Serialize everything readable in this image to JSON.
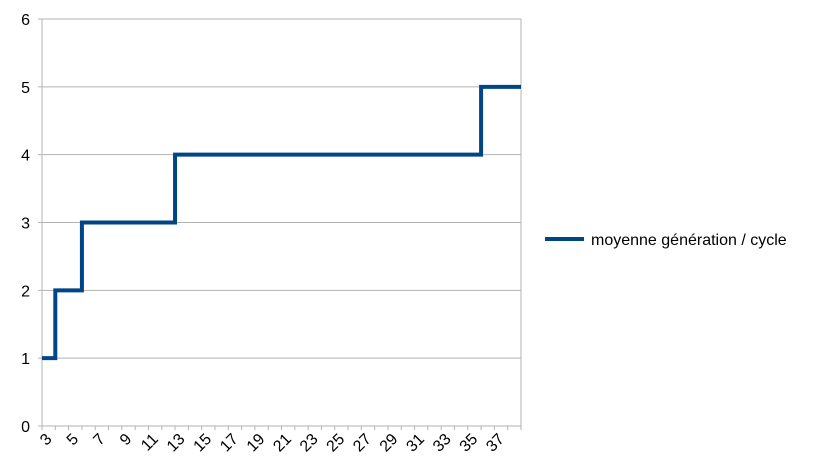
{
  "chart_data": {
    "type": "line",
    "step": true,
    "title": "",
    "xlabel": "",
    "ylabel": "",
    "x": [
      3,
      4,
      5,
      6,
      7,
      8,
      9,
      10,
      11,
      12,
      13,
      14,
      15,
      16,
      17,
      18,
      19,
      20,
      21,
      22,
      23,
      24,
      25,
      26,
      27,
      28,
      29,
      30,
      31,
      32,
      33,
      34,
      35,
      36,
      37,
      38
    ],
    "x_tick_labels": [
      "3",
      "5",
      "7",
      "9",
      "11",
      "13",
      "15",
      "17",
      "19",
      "21",
      "23",
      "25",
      "27",
      "29",
      "31",
      "33",
      "35",
      "37"
    ],
    "y_ticks": [
      0,
      1,
      2,
      3,
      4,
      5,
      6
    ],
    "ylim": [
      0,
      6
    ],
    "grid": "horizontal",
    "legend_position": "right",
    "series": [
      {
        "name": "moyenne génération / cycle",
        "color": "#004586",
        "values": [
          1,
          2,
          2,
          3,
          3,
          3,
          3,
          3,
          3,
          3,
          4,
          4,
          4,
          4,
          4,
          4,
          4,
          4,
          4,
          4,
          4,
          4,
          4,
          4,
          4,
          4,
          4,
          4,
          4,
          4,
          4,
          4,
          4,
          5,
          5,
          5
        ]
      }
    ]
  }
}
